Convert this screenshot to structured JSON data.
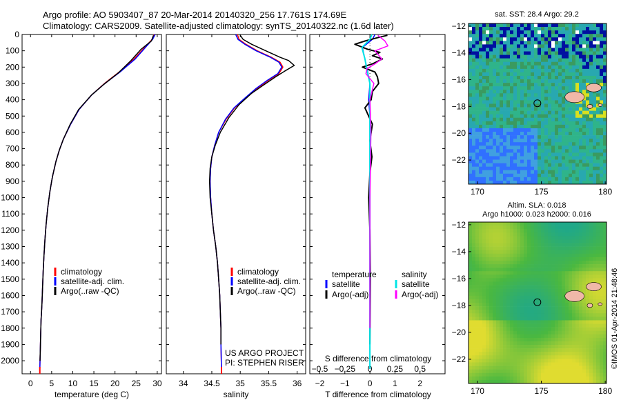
{
  "header": {
    "line1": "Argo profile: AO 5903407_87 20-Mar-2014 20140320_256 17.761S 174.69E",
    "line2": "Climatology: CARS2009. Satellite-adjusted climatology: synTS_20140322.nc (1.6d later)"
  },
  "colors": {
    "climatology": "#ff0000",
    "satellite": "#0000ff",
    "argo": "#000000",
    "sal_satellite": "#00e5e5",
    "sal_argo": "#ff00ff"
  },
  "chart_data": [
    {
      "id": "temperature",
      "type": "line",
      "xlabel": "temperature (deg C)",
      "ylabel": "",
      "xlim": [
        -2,
        31
      ],
      "ylim": [
        2080,
        0
      ],
      "xticks": [
        0,
        5,
        10,
        15,
        20,
        25,
        30
      ],
      "yticks": [
        0,
        100,
        200,
        300,
        400,
        500,
        600,
        700,
        800,
        900,
        1000,
        1100,
        1200,
        1300,
        1400,
        1500,
        1600,
        1700,
        1800,
        1900,
        2000
      ],
      "legend": [
        "climatology",
        "satellite-adj. clim.",
        "Argo(..raw -QC)"
      ],
      "series": [
        {
          "name": "climatology",
          "x": [
            29.3,
            28.8,
            27,
            24.5,
            21,
            17.5,
            14.5,
            11.5,
            9.5,
            7.8,
            6.8,
            6,
            5.2,
            4.6,
            4.1,
            3.7,
            3.4,
            3.2,
            3.0,
            2.85,
            2.7,
            2.6,
            2.5,
            2.45,
            2.4,
            2.35,
            2.3,
            2.25,
            2.2
          ],
          "y": [
            0,
            30,
            80,
            150,
            230,
            300,
            370,
            460,
            550,
            640,
            710,
            780,
            870,
            960,
            1060,
            1160,
            1260,
            1350,
            1450,
            1550,
            1650,
            1700,
            1750,
            1800,
            1850,
            1900,
            1950,
            2000,
            2060
          ]
        },
        {
          "name": "satellite-adj. clim.",
          "x": [
            29.5,
            28.9,
            27.2,
            24.8,
            21.2,
            17.6,
            14.5,
            11.5,
            9.5,
            7.8,
            6.8,
            6,
            5.2,
            4.6,
            4.1,
            3.7,
            3.4,
            3.2,
            3.0,
            2.85,
            2.7,
            2.6,
            2.5,
            2.45,
            2.4,
            2.35,
            2.3,
            2.25,
            2.2
          ],
          "y": [
            0,
            30,
            80,
            150,
            230,
            300,
            370,
            460,
            550,
            640,
            710,
            780,
            870,
            960,
            1060,
            1160,
            1260,
            1350,
            1450,
            1550,
            1650,
            1700,
            1750,
            1800,
            1850,
            1900,
            1950,
            2000,
            2060
          ]
        },
        {
          "name": "Argo(..raw -QC)",
          "x": [
            29.1,
            28.6,
            26.2,
            23.8,
            20.8,
            17.4,
            14.4,
            11.4,
            9.4,
            7.8,
            6.8,
            6,
            5.2,
            4.6,
            4.1,
            3.7,
            3.4,
            3.2,
            3.0,
            2.85,
            2.7,
            2.6,
            2.5,
            2.45,
            2.4,
            2.35,
            2.3,
            2.25
          ],
          "y": [
            5,
            40,
            90,
            160,
            235,
            305,
            372,
            460,
            550,
            640,
            710,
            780,
            870,
            960,
            1060,
            1160,
            1260,
            1350,
            1450,
            1550,
            1650,
            1700,
            1750,
            1800,
            1850,
            1900,
            1950,
            2000
          ]
        }
      ]
    },
    {
      "id": "salinity",
      "type": "line",
      "xlabel": "salinity",
      "xlim": [
        33.7,
        36.15
      ],
      "ylim": [
        2080,
        0
      ],
      "xticks": [
        34,
        34.5,
        35,
        35.5,
        36
      ],
      "xtick_labels": [
        "34",
        "34.5",
        "35",
        "35.5",
        "36"
      ],
      "legend": [
        "climatology",
        "satellite-adj. clim.",
        "Argo(..raw -QC)"
      ],
      "annotations": [
        "US ARGO PROJECT",
        "PI: STEPHEN RISER"
      ],
      "series": [
        {
          "name": "climatology",
          "x": [
            34.95,
            34.98,
            35.1,
            35.3,
            35.55,
            35.7,
            35.75,
            35.68,
            35.5,
            35.3,
            35.1,
            34.9,
            34.75,
            34.62,
            34.55,
            34.5,
            34.48,
            34.47,
            34.48,
            34.5,
            34.53,
            34.57,
            34.6,
            34.62,
            34.64,
            34.65,
            34.66,
            34.66,
            34.67
          ],
          "y": [
            0,
            30,
            60,
            100,
            140,
            170,
            200,
            240,
            280,
            330,
            390,
            450,
            520,
            600,
            680,
            750,
            820,
            900,
            1000,
            1100,
            1200,
            1300,
            1400,
            1500,
            1600,
            1700,
            1800,
            1900,
            2060
          ]
        },
        {
          "name": "satellite-adj. clim.",
          "x": [
            34.92,
            34.96,
            35.08,
            35.28,
            35.53,
            35.68,
            35.73,
            35.66,
            35.48,
            35.28,
            35.08,
            34.89,
            34.74,
            34.62,
            34.55,
            34.5,
            34.48,
            34.47,
            34.48,
            34.5,
            34.53,
            34.57,
            34.6,
            34.62,
            34.64,
            34.65,
            34.66,
            34.66,
            34.67
          ],
          "y": [
            0,
            30,
            60,
            100,
            140,
            170,
            200,
            240,
            280,
            330,
            390,
            450,
            520,
            600,
            680,
            750,
            820,
            900,
            1000,
            1100,
            1200,
            1300,
            1400,
            1500,
            1600,
            1700,
            1800,
            1900,
            2060
          ]
        },
        {
          "name": "Argo(..raw -QC)",
          "x": [
            35.0,
            35.05,
            35.2,
            35.45,
            35.7,
            35.85,
            35.95,
            35.78,
            35.62,
            35.45,
            35.2,
            34.98,
            34.8,
            34.65,
            34.56,
            34.5,
            34.47,
            34.46,
            34.47,
            34.5,
            34.53,
            34.57,
            34.6,
            34.62,
            34.64,
            34.65,
            34.66,
            34.66
          ],
          "y": [
            5,
            30,
            60,
            100,
            140,
            160,
            190,
            225,
            260,
            300,
            360,
            430,
            510,
            600,
            680,
            750,
            820,
            900,
            1000,
            1100,
            1200,
            1300,
            1400,
            1500,
            1600,
            1700,
            1800,
            1900
          ]
        }
      ]
    },
    {
      "id": "differences",
      "type": "line",
      "xlabel": "T difference from climatology",
      "xlabel_top": "S difference from climatology",
      "xlim": [
        -2.4,
        3.0
      ],
      "ylim": [
        2080,
        0
      ],
      "xticks": [
        -2,
        -1,
        0,
        1,
        2
      ],
      "xtick_labels": [
        "−2",
        "−1",
        "0",
        "1",
        "2"
      ],
      "s_ticks": [
        -0.5,
        -0.25,
        0,
        0.25,
        0.5
      ],
      "s_tick_labels": [
        "−0.5",
        "−0.25",
        "0",
        "0.25",
        "0.5"
      ],
      "s_to_t_scale": 4,
      "legend_temperature_title": "temperature",
      "legend_salinity_title": "salinity",
      "legend_temperature": [
        "satellite",
        "Argo(-adj)"
      ],
      "legend_salinity": [
        "satellite",
        "Argo(-adj)"
      ],
      "series": [
        {
          "name": "T satellite",
          "x": [
            0.2,
            0.1,
            -0.3,
            -0.2,
            -0.1,
            0,
            -0.05,
            0,
            0,
            0,
            0,
            0,
            0,
            0,
            0,
            0
          ],
          "y": [
            0,
            30,
            80,
            150,
            220,
            300,
            400,
            500,
            700,
            900,
            1100,
            1300,
            1500,
            1700,
            1900,
            2050
          ]
        },
        {
          "name": "T Argo(-adj)",
          "x": [
            0.7,
            0.3,
            -0.2,
            -0.6,
            -0.1,
            0.4,
            0.1,
            0.5,
            0.1,
            -0.3,
            0.2,
            0.3,
            0.35,
            0.1,
            0.05,
            -0.2,
            0.1,
            0,
            0.08,
            0,
            -0.05,
            0,
            0.02,
            0
          ],
          "y": [
            5,
            20,
            40,
            60,
            90,
            110,
            130,
            150,
            180,
            200,
            230,
            260,
            300,
            350,
            400,
            450,
            550,
            650,
            750,
            850,
            1000,
            1200,
            1500,
            1900
          ]
        },
        {
          "name": "S satellite",
          "x": [
            0.02,
            0.0,
            -0.08,
            -0.05,
            -0.03,
            0,
            0,
            0,
            0,
            0,
            0,
            0
          ],
          "y": [
            0,
            30,
            80,
            150,
            220,
            300,
            450,
            700,
            1000,
            1400,
            1800,
            2050
          ]
        },
        {
          "name": "S Argo(-adj)",
          "x": [
            0.08,
            0.15,
            0.18,
            0.05,
            0.12,
            0.05,
            -0.03,
            -0.04,
            0.04,
            0,
            0.01,
            0,
            0
          ],
          "y": [
            5,
            40,
            70,
            100,
            150,
            180,
            210,
            240,
            300,
            400,
            600,
            1000,
            1800
          ]
        }
      ]
    }
  ],
  "maps": [
    {
      "id": "sst-map",
      "title": "sat. SST: 28.4 Argo: 29.2",
      "xticks": [
        170,
        175,
        180
      ],
      "yticks": [
        -12,
        -14,
        -16,
        -18,
        -20,
        -22
      ],
      "ytick_labels": [
        "−12",
        "−14",
        "−16",
        "−18",
        "−20",
        "−22"
      ],
      "float_location": {
        "lon": 174.69,
        "lat": -17.761
      }
    },
    {
      "id": "sla-map",
      "title_line1": "Altim. SLA: 0.018",
      "title_line2": "Argo h1000: 0.023 h2000: 0.016",
      "xticks": [
        170,
        175,
        180
      ],
      "yticks": [
        -12,
        -14,
        -16,
        -18,
        -20,
        -22
      ],
      "ytick_labels": [
        "−12",
        "−14",
        "−16",
        "−18",
        "−20",
        "−22"
      ],
      "float_location": {
        "lon": 174.69,
        "lat": -17.761
      }
    }
  ],
  "side_label": "©IMOS 01-Apr-2014 21:48:46"
}
